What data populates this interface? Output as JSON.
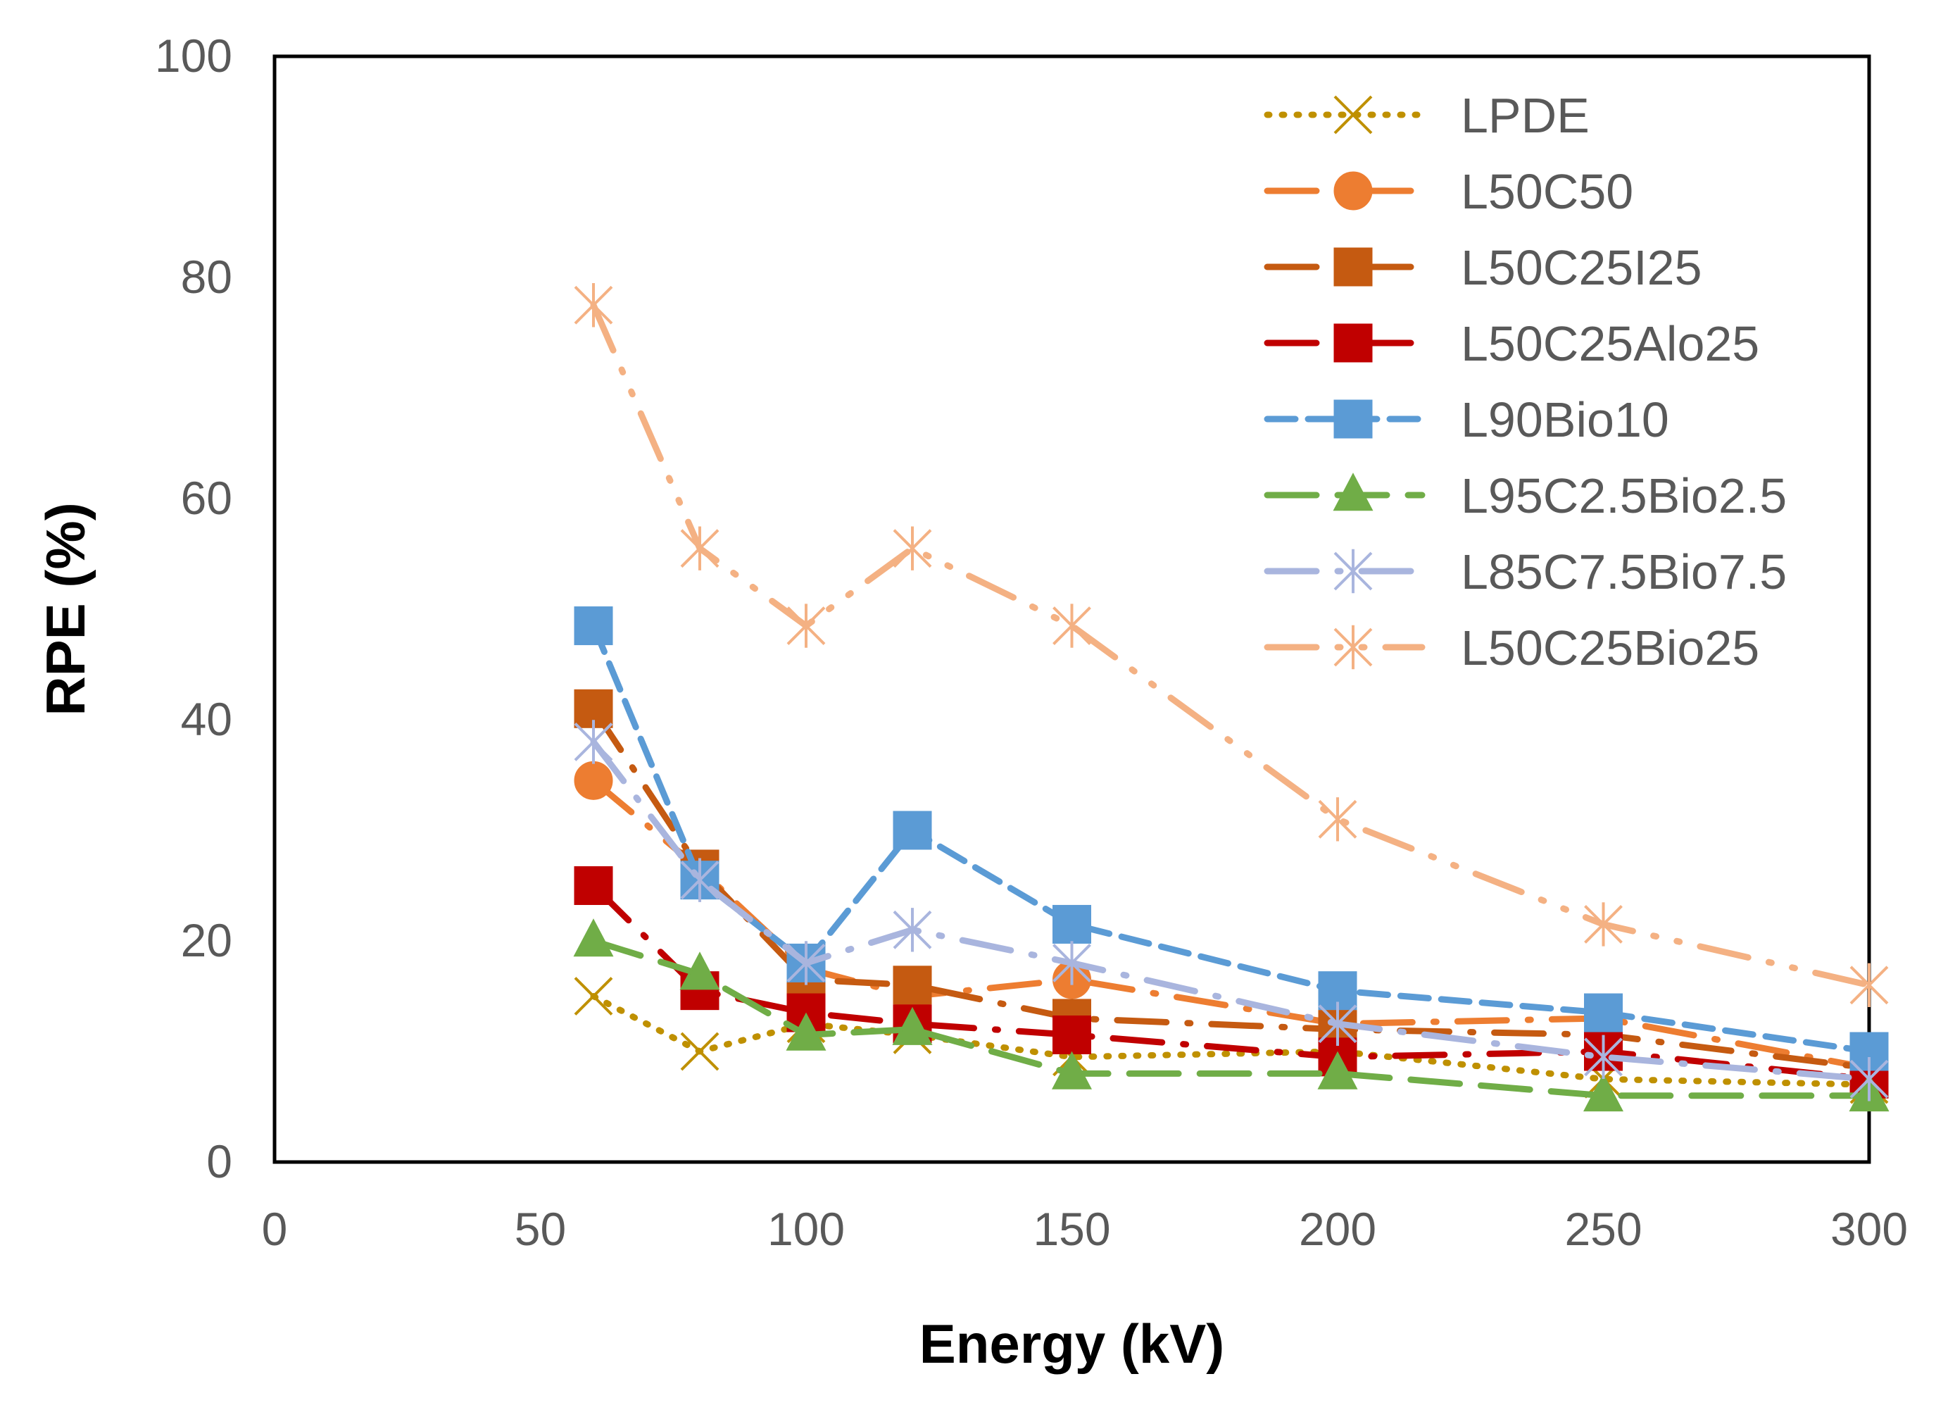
{
  "chart_data": {
    "type": "line",
    "title": "",
    "xlabel": "Energy (kV)",
    "ylabel": "RPE (%)",
    "xlim": [
      0,
      300
    ],
    "ylim": [
      0,
      100
    ],
    "xticks": [
      0,
      50,
      100,
      150,
      200,
      250,
      300
    ],
    "yticks": [
      0,
      20,
      40,
      60,
      80,
      100
    ],
    "grid": false,
    "legend_position": "top-right",
    "x": [
      60,
      80,
      100,
      120,
      150,
      200,
      250,
      300
    ],
    "series": [
      {
        "name": "LPDE",
        "color": "#BF9000",
        "dash": "dot",
        "marker": "x",
        "values": [
          15,
          10,
          12.5,
          11.5,
          9.5,
          10,
          7.5,
          7
        ]
      },
      {
        "name": "L50C50",
        "color": "#ED7D31",
        "dash": "longdashdot",
        "marker": "circle",
        "values": [
          34.5,
          26.5,
          17.5,
          15,
          16.5,
          12.5,
          13,
          8.5
        ]
      },
      {
        "name": "L50C25I25",
        "color": "#C55A11",
        "dash": "longdashdot",
        "marker": "square",
        "values": [
          41,
          26.5,
          16.5,
          16,
          13,
          12,
          11.5,
          8.5
        ]
      },
      {
        "name": "L50C25Alo25",
        "color": "#C00000",
        "dash": "longdashdot",
        "marker": "square",
        "values": [
          25,
          15.5,
          13.5,
          12.5,
          11.5,
          9.5,
          10,
          7.5
        ]
      },
      {
        "name": "L90Bio10",
        "color": "#5B9BD5",
        "dash": "dash",
        "marker": "square",
        "values": [
          48.5,
          25.5,
          18,
          30,
          21.5,
          15.5,
          13.5,
          10
        ]
      },
      {
        "name": "L95C2.5Bio2.5",
        "color": "#70AD47",
        "dash": "longdash",
        "marker": "triangle",
        "values": [
          20,
          17,
          11.5,
          12,
          8,
          8,
          6,
          6
        ]
      },
      {
        "name": "L85C7.5Bio7.5",
        "color": "#A9B5DE",
        "dash": "longdashdot",
        "marker": "asterisk",
        "values": [
          38,
          25.5,
          18,
          21,
          18,
          12.5,
          9.5,
          7.5
        ]
      },
      {
        "name": "L50C25Bio25",
        "color": "#F4B183",
        "dash": "longdashdotdot",
        "marker": "asterisk",
        "values": [
          77.5,
          55.5,
          48.5,
          55.5,
          48.5,
          31,
          21.5,
          16
        ]
      }
    ]
  }
}
